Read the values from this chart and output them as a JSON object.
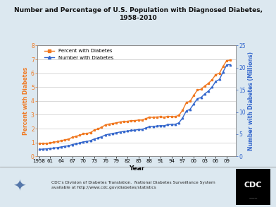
{
  "title": "Number and Percentage of U.S. Population with Diagnosed Diabetes,\n1958-2010",
  "xlabel": "Year",
  "ylabel_left": "Percent with Diabetes",
  "ylabel_right": "Number with Diabetes (Millions)",
  "bg_color": "#dce8f0",
  "plot_bg_color": "#ffffff",
  "orange_color": "#f07820",
  "blue_color": "#3366cc",
  "years": [
    1958,
    1959,
    1960,
    1961,
    1962,
    1963,
    1964,
    1965,
    1966,
    1967,
    1968,
    1969,
    1970,
    1971,
    1972,
    1973,
    1974,
    1975,
    1976,
    1977,
    1978,
    1979,
    1980,
    1981,
    1982,
    1983,
    1984,
    1985,
    1986,
    1987,
    1988,
    1989,
    1990,
    1991,
    1992,
    1993,
    1994,
    1995,
    1996,
    1997,
    1998,
    1999,
    2000,
    2001,
    2002,
    2003,
    2004,
    2005,
    2006,
    2007,
    2008,
    2009,
    2010
  ],
  "percent": [
    0.93,
    0.92,
    0.93,
    0.97,
    1.02,
    1.06,
    1.13,
    1.19,
    1.24,
    1.37,
    1.44,
    1.52,
    1.62,
    1.65,
    1.72,
    1.89,
    1.98,
    2.1,
    2.27,
    2.33,
    2.37,
    2.42,
    2.48,
    2.51,
    2.53,
    2.58,
    2.58,
    2.62,
    2.62,
    2.72,
    2.83,
    2.81,
    2.84,
    2.85,
    2.82,
    2.89,
    2.88,
    2.86,
    2.97,
    3.33,
    3.88,
    3.97,
    4.38,
    4.79,
    4.84,
    5.08,
    5.27,
    5.53,
    5.9,
    6.0,
    6.5,
    6.92,
    6.95
  ],
  "number_millions": [
    1.58,
    1.62,
    1.68,
    1.76,
    1.87,
    1.96,
    2.12,
    2.26,
    2.38,
    2.65,
    2.83,
    3.02,
    3.26,
    3.36,
    3.54,
    3.92,
    4.15,
    4.42,
    4.82,
    5.01,
    5.16,
    5.31,
    5.49,
    5.62,
    5.71,
    5.87,
    5.91,
    6.04,
    6.1,
    6.38,
    6.72,
    6.74,
    6.84,
    6.93,
    6.91,
    7.16,
    7.2,
    7.23,
    7.57,
    8.67,
    10.24,
    10.6,
    11.79,
    13.01,
    13.26,
    14.08,
    14.73,
    15.63,
    16.9,
    17.35,
    19.07,
    20.67,
    20.68
  ],
  "xtick_labels": [
    "1958",
    "61",
    "64",
    "67",
    "70",
    "73",
    "76",
    "79",
    "82",
    "85",
    "88",
    "91",
    "94",
    "97",
    "00",
    "03",
    "06",
    "09"
  ],
  "xtick_years": [
    1958,
    1961,
    1964,
    1967,
    1970,
    1973,
    1976,
    1979,
    1982,
    1985,
    1988,
    1991,
    1994,
    1997,
    2000,
    2003,
    2006,
    2009
  ],
  "ylim_left": [
    0,
    8
  ],
  "ylim_right": [
    0,
    25
  ],
  "yticks_left": [
    0,
    1,
    2,
    3,
    4,
    5,
    6,
    7,
    8
  ],
  "yticks_right": [
    0,
    5,
    10,
    15,
    20,
    25
  ],
  "footer_text": "CDC's Division of Diabetes Translation.  National Diabetes Surveillance System\navailable at http://www.cdc.gov/diabetes/statistics"
}
